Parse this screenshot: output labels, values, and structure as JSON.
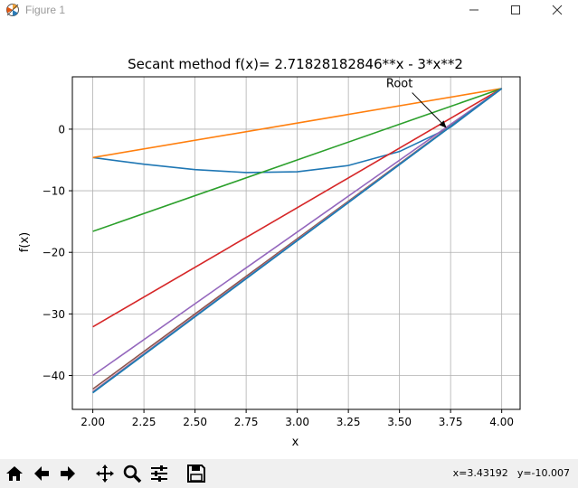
{
  "window": {
    "title": "Figure 1",
    "icons": [
      "matplotlib-icon",
      "minimize-icon",
      "maximize-icon",
      "close-icon"
    ]
  },
  "toolbar": {
    "buttons": [
      "home-icon",
      "back-icon",
      "forward-icon",
      "pan-icon",
      "zoom-icon",
      "configure-subplots-icon",
      "save-icon"
    ],
    "coords": {
      "x": "x=3.43192",
      "y": "y=-10.007"
    }
  },
  "chart_data": {
    "type": "line",
    "title": "Secant method f(x)= 2.71828182846**x - 3*x**2",
    "xlabel": "x",
    "ylabel": "f(x)",
    "xlim": [
      1.9,
      4.09
    ],
    "ylim": [
      -45.5,
      8.5
    ],
    "grid": true,
    "xticks": [
      "2.00",
      "2.25",
      "2.50",
      "2.75",
      "3.00",
      "3.25",
      "3.50",
      "3.75",
      "4.00"
    ],
    "yticks": [
      "−40",
      "−30",
      "−20",
      "−10",
      "0"
    ],
    "annotation": {
      "text": "Root",
      "xy": [
        3.73,
        0.2
      ],
      "xytext": [
        3.5,
        6.8
      ]
    },
    "curve": {
      "x": [
        2.0,
        2.25,
        2.5,
        2.75,
        3.0,
        3.25,
        3.5,
        3.75,
        4.0
      ],
      "y": [
        -4.61,
        -5.69,
        -6.57,
        -7.04,
        -6.91,
        -5.9,
        -3.63,
        0.33,
        6.6
      ],
      "color": "#1f77b4"
    },
    "series": [
      {
        "x": [
          2.0,
          4.0
        ],
        "y": [
          -4.61,
          6.6
        ],
        "color": "#ff7f0e"
      },
      {
        "x": [
          2.0,
          4.0
        ],
        "y": [
          -16.6,
          6.6
        ],
        "color": "#2ca02c"
      },
      {
        "x": [
          2.0,
          4.0
        ],
        "y": [
          -32.1,
          6.6
        ],
        "color": "#d62728"
      },
      {
        "x": [
          2.0,
          4.0
        ],
        "y": [
          -40.0,
          6.6
        ],
        "color": "#9467bd"
      },
      {
        "x": [
          2.0,
          4.0
        ],
        "y": [
          -42.2,
          6.6
        ],
        "color": "#8c564b"
      },
      {
        "x": [
          2.0,
          4.0
        ],
        "y": [
          -42.6,
          6.6
        ],
        "color": "#e377c2"
      },
      {
        "x": [
          2.0,
          4.0
        ],
        "y": [
          -42.7,
          6.6
        ],
        "color": "#7f7f7f"
      },
      {
        "x": [
          2.0,
          4.0
        ],
        "y": [
          -42.8,
          6.6
        ],
        "color": "#17becf"
      },
      {
        "x": [
          2.0,
          4.0
        ],
        "y": [
          -42.8,
          6.6
        ],
        "color": "#1f77b4"
      }
    ]
  }
}
